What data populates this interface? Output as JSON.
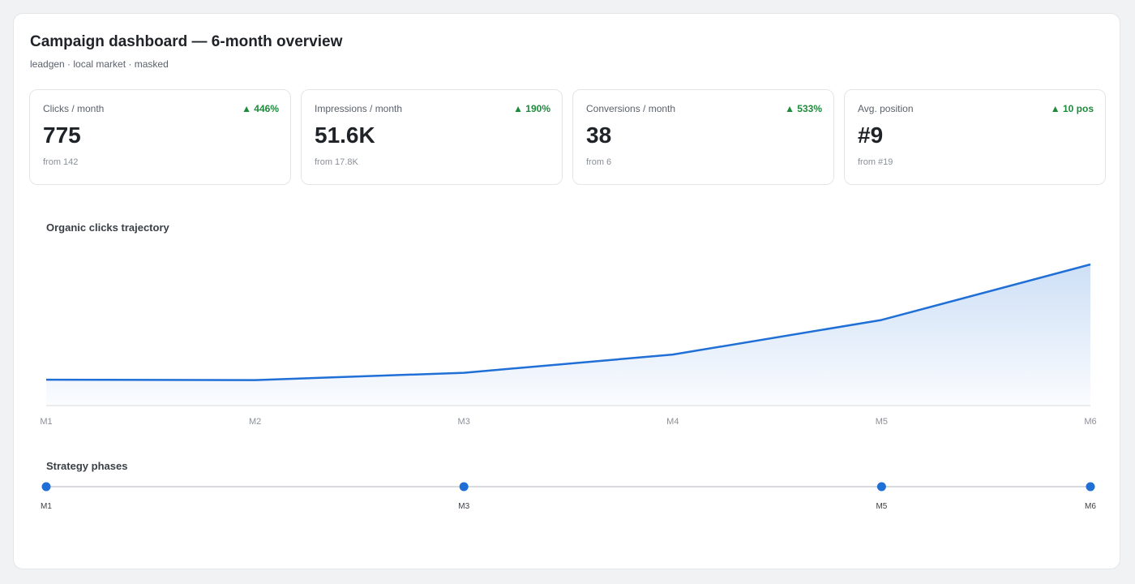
{
  "header": {
    "title": "Campaign dashboard — 6-month overview",
    "subtitle": "leadgen · local market · masked"
  },
  "kpis": [
    {
      "label": "Clicks / month",
      "delta": "▲ 446%",
      "value": "775",
      "from": "from 142"
    },
    {
      "label": "Impressions / month",
      "delta": "▲ 190%",
      "value": "51.6K",
      "from": "from 17.8K"
    },
    {
      "label": "Conversions / month",
      "delta": "▲ 533%",
      "value": "38",
      "from": "from 6"
    },
    {
      "label": "Avg. position",
      "delta": "▲ 10 pos",
      "value": "#9",
      "from": "from #19"
    }
  ],
  "chart_section_title": "Organic clicks trajectory",
  "chart_data": {
    "type": "area",
    "title": "Organic clicks trajectory",
    "categories": [
      "M1",
      "M2",
      "M3",
      "M4",
      "M5",
      "M6"
    ],
    "values": [
      142,
      140,
      180,
      280,
      470,
      775
    ],
    "xlabel": "",
    "ylabel": "",
    "ylim": [
      0,
      775
    ],
    "grid": false,
    "line_color": "#1f6fd6"
  },
  "phases": {
    "title": "Strategy phases",
    "points": [
      "M1",
      "M3",
      "M5",
      "M6"
    ],
    "all_months": [
      "M1",
      "M2",
      "M3",
      "M4",
      "M5",
      "M6"
    ]
  },
  "colors": {
    "accent": "#1f6fd6",
    "positive": "#1e8a3c"
  }
}
